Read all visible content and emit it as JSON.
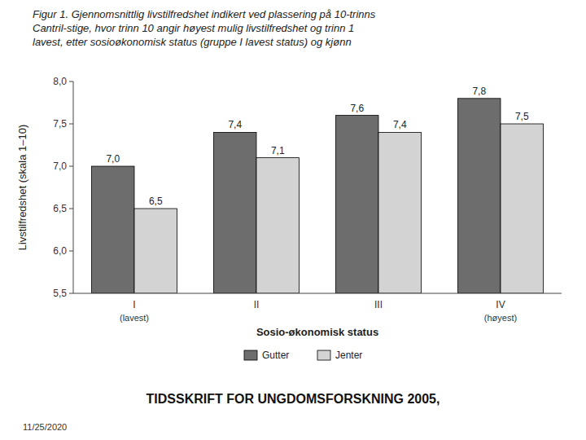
{
  "chart_data": {
    "type": "bar",
    "title": "Figur 1. Gjennomsnittlig livstilfredshet indikert ved plassering på 10-trinns\nCantril-stige, hvor trinn 10 angir høyest mulig livstilfredshet og trinn 1\nlavest, etter sosioøkonomisk status (gruppe I lavest status) og kjønn",
    "x_label": "Sosio-økonomisk status",
    "y_label": "Livstilfredshet (skala 1–10)",
    "categories": [
      "I",
      "II",
      "III",
      "IV"
    ],
    "series": [
      {
        "name": "Gutter",
        "color": "#6d6d6d",
        "values": [
          7.0,
          7.4,
          7.6,
          7.8
        ],
        "value_labels": [
          "7,0",
          "7,4",
          "7,6",
          "7,8"
        ]
      },
      {
        "name": "Jenter",
        "color": "#d3d3d3",
        "values": [
          6.5,
          7.1,
          7.4,
          7.5
        ],
        "value_labels": [
          "6,5",
          "7,1",
          "7,4",
          "7,5"
        ]
      }
    ],
    "ylim": [
      5.5,
      8.0
    ],
    "yticks": [
      {
        "value": 5.5,
        "label": "5,5"
      },
      {
        "value": 6.0,
        "label": "6,0"
      },
      {
        "value": 6.5,
        "label": "6,5"
      },
      {
        "value": 7.0,
        "label": "7,0"
      },
      {
        "value": 7.5,
        "label": "7,5"
      },
      {
        "value": 8.0,
        "label": "8,0"
      }
    ],
    "data_labels": true,
    "grid": false,
    "legend": "bottom",
    "annotations": [
      {
        "text": "(lavest)",
        "x": "I"
      },
      {
        "text": "(høyest)",
        "x": "IV"
      },
      {
        "text": "TIDSSKRIFT FOR UNGDOMSFORSKNING 2005,"
      },
      {
        "text": "11/25/2020"
      }
    ]
  }
}
